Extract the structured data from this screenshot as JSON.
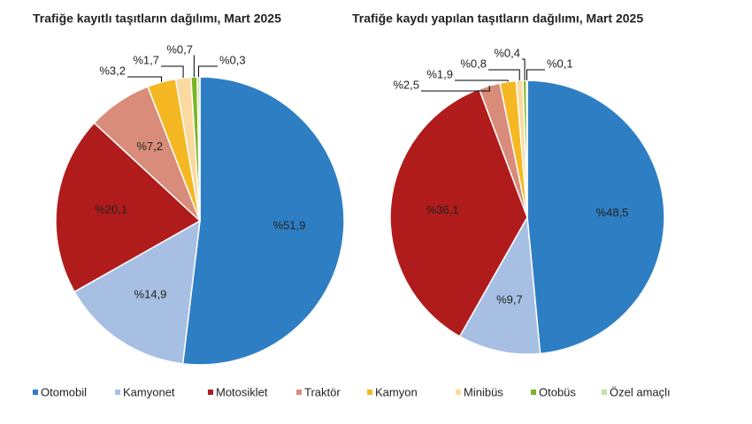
{
  "legend": {
    "names": [
      "Otomobil",
      "Kamyonet",
      "Motosiklet",
      "Traktör",
      "Kamyon",
      "Minibüs",
      "Otobüs",
      "Özel amaçlı"
    ],
    "colors": [
      "#2e7ec4",
      "#a6bfe3",
      "#b01c1c",
      "#d98c79",
      "#f5b823",
      "#fbd9a0",
      "#7ab524",
      "#c9dea3"
    ]
  },
  "chart_data": [
    {
      "type": "pie",
      "title": "Trafiğe kayıtlı taşıtların dağılımı, Mart 2025",
      "values": [
        51.9,
        14.9,
        20.1,
        7.2,
        3.2,
        1.7,
        0.7,
        0.3
      ],
      "value_labels": [
        "%51,9",
        "%14,9",
        "%20,1",
        "%7,2",
        "%3,2",
        "%1,7",
        "%0,7",
        "%0,3"
      ]
    },
    {
      "type": "pie",
      "title": "Trafiğe kaydı yapılan taşıtların dağılımı, Mart 2025",
      "values": [
        48.5,
        9.7,
        36.1,
        2.5,
        1.9,
        0.8,
        0.4,
        0.1
      ],
      "value_labels": [
        "%48,5",
        "%9,7",
        "%36,1",
        "%2,5",
        "%1,9",
        "%0,8",
        "%0,4",
        "%0,1"
      ]
    }
  ]
}
